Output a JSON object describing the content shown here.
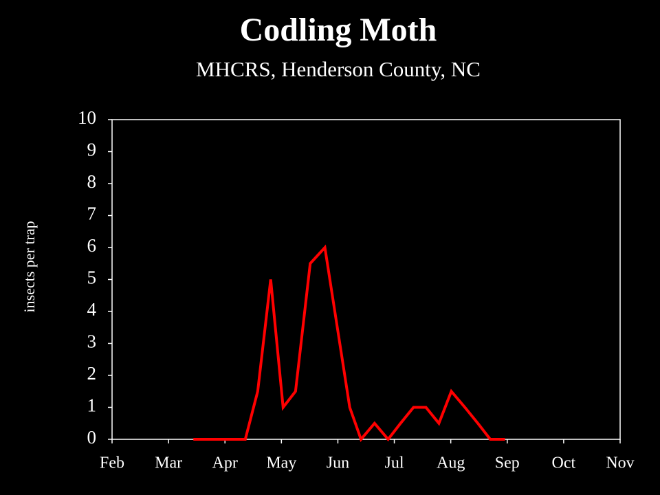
{
  "chart_data": {
    "type": "line",
    "title": "Codling Moth",
    "subtitle": "MHCRS, Henderson County, NC",
    "y_label": "insects per trap",
    "x": [
      1.44,
      1.67,
      1.91,
      2.13,
      2.36,
      2.58,
      2.81,
      3.03,
      3.25,
      3.51,
      3.77,
      3.99,
      4.21,
      4.41,
      4.65,
      4.89,
      5.11,
      5.34,
      5.56,
      5.79,
      6.01,
      6.25,
      6.48,
      6.7,
      6.96
    ],
    "series": [
      {
        "color": "#ff0000",
        "values": [
          0,
          0,
          0,
          0,
          0,
          1.5,
          5,
          1,
          1.5,
          5.5,
          6,
          3.5,
          1,
          0,
          0.5,
          0,
          0.5,
          1,
          1,
          0.5,
          1.5,
          1,
          0.5,
          0,
          0
        ]
      }
    ],
    "xlim": [
      0,
      9
    ],
    "xticks": [
      {
        "value": 0,
        "label": "Feb"
      },
      {
        "value": 1,
        "label": "Mar"
      },
      {
        "value": 2,
        "label": "Apr"
      },
      {
        "value": 3,
        "label": "May"
      },
      {
        "value": 4,
        "label": "Jun"
      },
      {
        "value": 5,
        "label": "Jul"
      },
      {
        "value": 6,
        "label": "Aug"
      },
      {
        "value": 7,
        "label": "Sep"
      },
      {
        "value": 8,
        "label": "Oct"
      },
      {
        "value": 9,
        "label": "Nov"
      }
    ],
    "ylim": [
      0,
      10
    ],
    "yticks": [
      0,
      1,
      2,
      3,
      4,
      5,
      6,
      7,
      8,
      9,
      10
    ]
  }
}
